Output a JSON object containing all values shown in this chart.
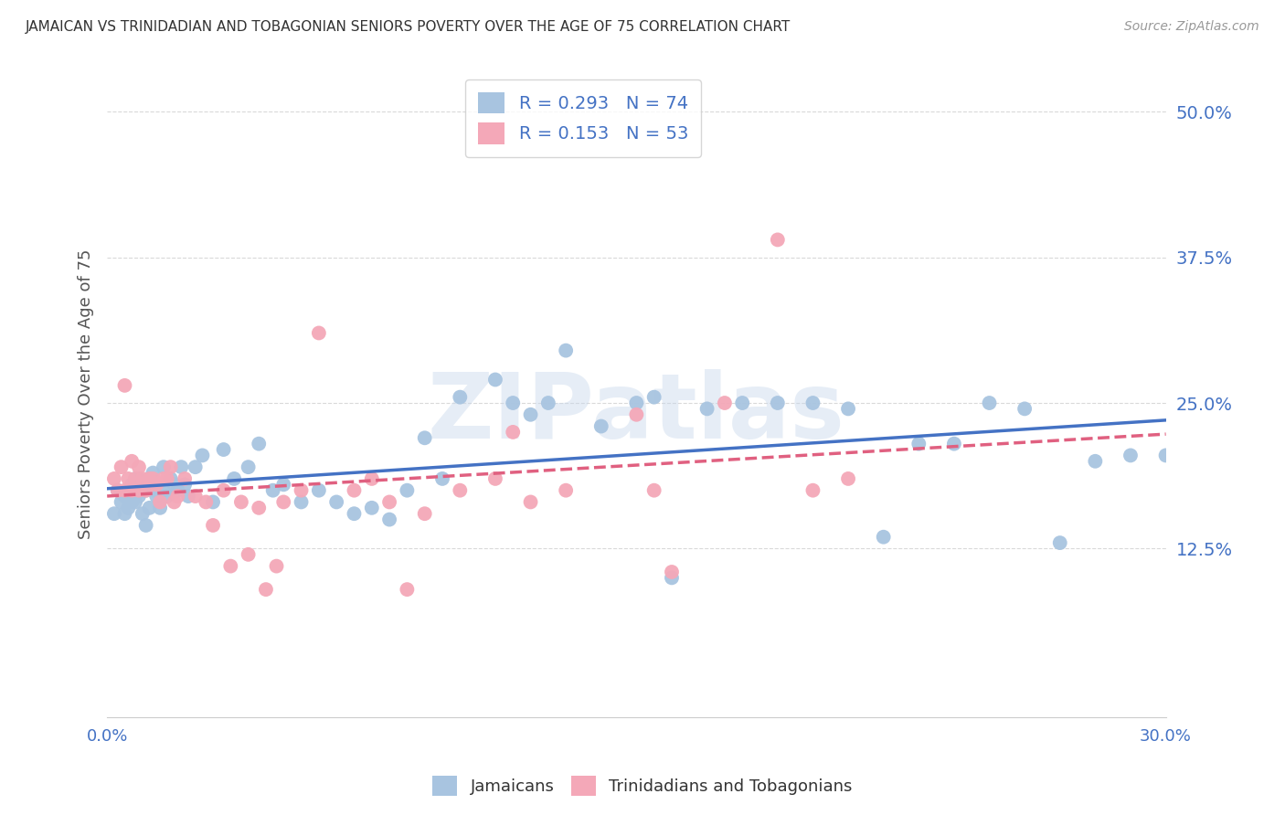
{
  "title": "JAMAICAN VS TRINIDADIAN AND TOBAGONIAN SENIORS POVERTY OVER THE AGE OF 75 CORRELATION CHART",
  "source": "Source: ZipAtlas.com",
  "ylabel": "Seniors Poverty Over the Age of 75",
  "xlabel": "",
  "xlim": [
    0.0,
    0.3
  ],
  "ylim": [
    -0.02,
    0.535
  ],
  "ytick_vals": [
    0.0,
    0.125,
    0.25,
    0.375,
    0.5
  ],
  "ytick_labels": [
    "",
    "12.5%",
    "25.0%",
    "37.5%",
    "50.0%"
  ],
  "xtick_vals": [
    0.0,
    0.05,
    0.1,
    0.15,
    0.2,
    0.25,
    0.3
  ],
  "xtick_labels": [
    "0.0%",
    "",
    "",
    "",
    "",
    "",
    "30.0%"
  ],
  "jamaican_color": "#a8c4e0",
  "trinidadian_color": "#f4a8b8",
  "jamaican_R": 0.293,
  "jamaican_N": 74,
  "trinidadian_R": 0.153,
  "trinidadian_N": 53,
  "jamaican_line_color": "#4472c4",
  "trinidadian_line_color": "#e06080",
  "watermark_text": "ZIPatlas",
  "background_color": "#ffffff",
  "grid_color": "#d0d0d0",
  "axis_color": "#4472c4",
  "title_color": "#333333",
  "source_color": "#999999",
  "ylabel_color": "#555555",
  "jamaican_x": [
    0.002,
    0.003,
    0.004,
    0.005,
    0.005,
    0.006,
    0.006,
    0.007,
    0.007,
    0.008,
    0.008,
    0.009,
    0.009,
    0.01,
    0.01,
    0.011,
    0.011,
    0.012,
    0.012,
    0.013,
    0.013,
    0.014,
    0.015,
    0.016,
    0.016,
    0.017,
    0.018,
    0.019,
    0.02,
    0.021,
    0.022,
    0.023,
    0.025,
    0.027,
    0.03,
    0.033,
    0.036,
    0.04,
    0.043,
    0.047,
    0.05,
    0.055,
    0.06,
    0.065,
    0.07,
    0.075,
    0.08,
    0.085,
    0.09,
    0.095,
    0.1,
    0.11,
    0.115,
    0.12,
    0.125,
    0.13,
    0.14,
    0.15,
    0.155,
    0.16,
    0.17,
    0.18,
    0.19,
    0.2,
    0.21,
    0.22,
    0.23,
    0.24,
    0.25,
    0.26,
    0.27,
    0.28,
    0.29,
    0.3
  ],
  "jamaican_y": [
    0.155,
    0.175,
    0.165,
    0.155,
    0.17,
    0.16,
    0.175,
    0.165,
    0.18,
    0.165,
    0.185,
    0.17,
    0.185,
    0.175,
    0.155,
    0.145,
    0.175,
    0.16,
    0.185,
    0.175,
    0.19,
    0.17,
    0.16,
    0.175,
    0.195,
    0.17,
    0.185,
    0.18,
    0.175,
    0.195,
    0.18,
    0.17,
    0.195,
    0.205,
    0.165,
    0.21,
    0.185,
    0.195,
    0.215,
    0.175,
    0.18,
    0.165,
    0.175,
    0.165,
    0.155,
    0.16,
    0.15,
    0.175,
    0.22,
    0.185,
    0.255,
    0.27,
    0.25,
    0.24,
    0.25,
    0.295,
    0.23,
    0.25,
    0.255,
    0.1,
    0.245,
    0.25,
    0.25,
    0.25,
    0.245,
    0.135,
    0.215,
    0.215,
    0.25,
    0.245,
    0.13,
    0.2,
    0.205,
    0.205
  ],
  "trinidadian_x": [
    0.002,
    0.003,
    0.004,
    0.005,
    0.005,
    0.006,
    0.007,
    0.007,
    0.008,
    0.009,
    0.009,
    0.01,
    0.011,
    0.012,
    0.013,
    0.014,
    0.015,
    0.016,
    0.017,
    0.018,
    0.019,
    0.02,
    0.022,
    0.025,
    0.028,
    0.03,
    0.033,
    0.035,
    0.038,
    0.04,
    0.043,
    0.045,
    0.048,
    0.05,
    0.055,
    0.06,
    0.07,
    0.075,
    0.08,
    0.085,
    0.09,
    0.1,
    0.11,
    0.115,
    0.12,
    0.13,
    0.15,
    0.155,
    0.16,
    0.175,
    0.19,
    0.2,
    0.21
  ],
  "trinidadian_y": [
    0.185,
    0.175,
    0.195,
    0.175,
    0.265,
    0.185,
    0.2,
    0.175,
    0.185,
    0.195,
    0.175,
    0.185,
    0.175,
    0.185,
    0.185,
    0.18,
    0.165,
    0.185,
    0.185,
    0.195,
    0.165,
    0.17,
    0.185,
    0.17,
    0.165,
    0.145,
    0.175,
    0.11,
    0.165,
    0.12,
    0.16,
    0.09,
    0.11,
    0.165,
    0.175,
    0.31,
    0.175,
    0.185,
    0.165,
    0.09,
    0.155,
    0.175,
    0.185,
    0.225,
    0.165,
    0.175,
    0.24,
    0.175,
    0.105,
    0.25,
    0.39,
    0.175,
    0.185
  ]
}
